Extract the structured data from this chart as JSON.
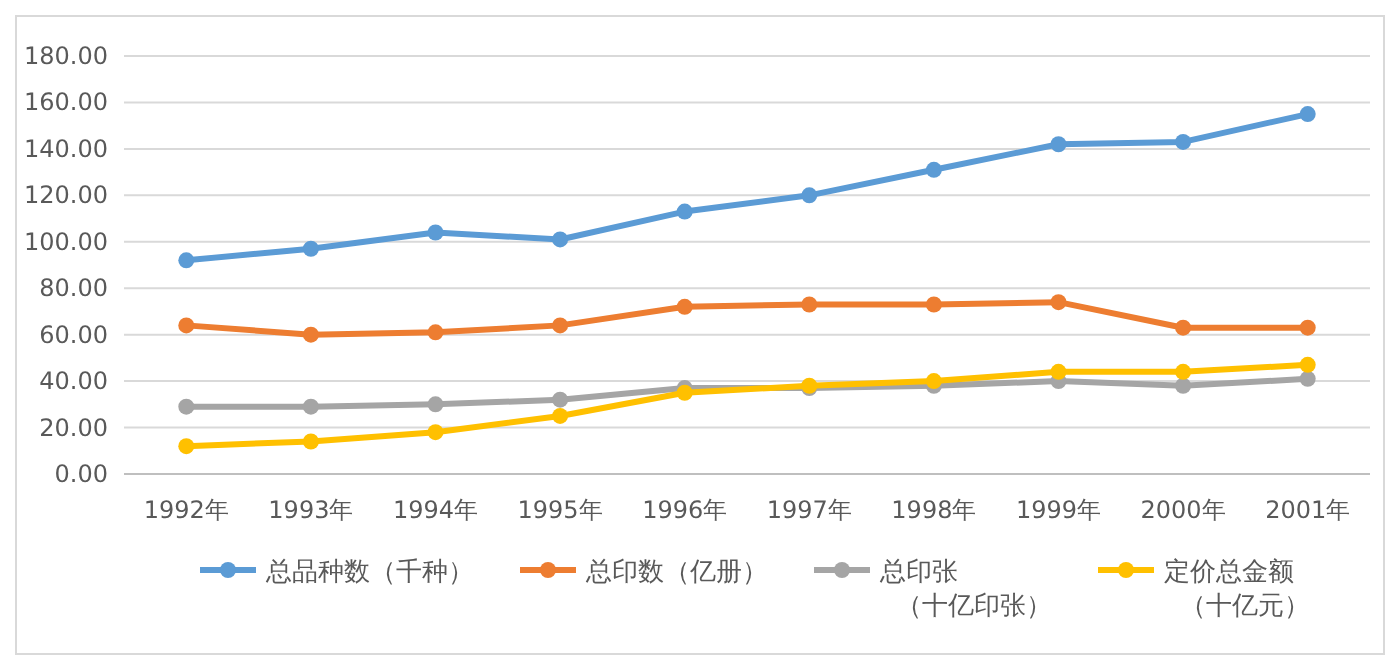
{
  "chart_data": {
    "type": "line",
    "categories": [
      "1992年",
      "1993年",
      "1994年",
      "1995年",
      "1996年",
      "1997年",
      "1998年",
      "1999年",
      "2000年",
      "2001年"
    ],
    "series": [
      {
        "name": "总品种数（千种）",
        "color": "#5b9bd5",
        "values": [
          92,
          97,
          104,
          101,
          113,
          120,
          131,
          142,
          143,
          155
        ]
      },
      {
        "name": "总印数（亿册）",
        "color": "#ed7d31",
        "values": [
          64,
          60,
          61,
          64,
          72,
          73,
          73,
          74,
          63,
          63
        ]
      },
      {
        "name": "总印张（十亿印张）",
        "color": "#a5a5a5",
        "values": [
          29,
          29,
          30,
          32,
          37,
          37,
          38,
          40,
          38,
          41
        ]
      },
      {
        "name": "定价总金额（十亿元）",
        "color": "#ffc000",
        "values": [
          12,
          14,
          18,
          25,
          35,
          38,
          40,
          44,
          44,
          47
        ]
      }
    ],
    "ylim": [
      0,
      180
    ],
    "yticks": [
      {
        "value": 0,
        "label": "0.00"
      },
      {
        "value": 20,
        "label": "20.00"
      },
      {
        "value": 40,
        "label": "40.00"
      },
      {
        "value": 60,
        "label": "60.00"
      },
      {
        "value": 80,
        "label": "80.00"
      },
      {
        "value": 100,
        "label": "100.00"
      },
      {
        "value": 120,
        "label": "120.00"
      },
      {
        "value": 140,
        "label": "140.00"
      },
      {
        "value": 160,
        "label": "160.00"
      },
      {
        "value": 180,
        "label": "180.00"
      }
    ],
    "grid": "y",
    "legend": "bottom",
    "marker": "circle",
    "line_style": "solid"
  }
}
